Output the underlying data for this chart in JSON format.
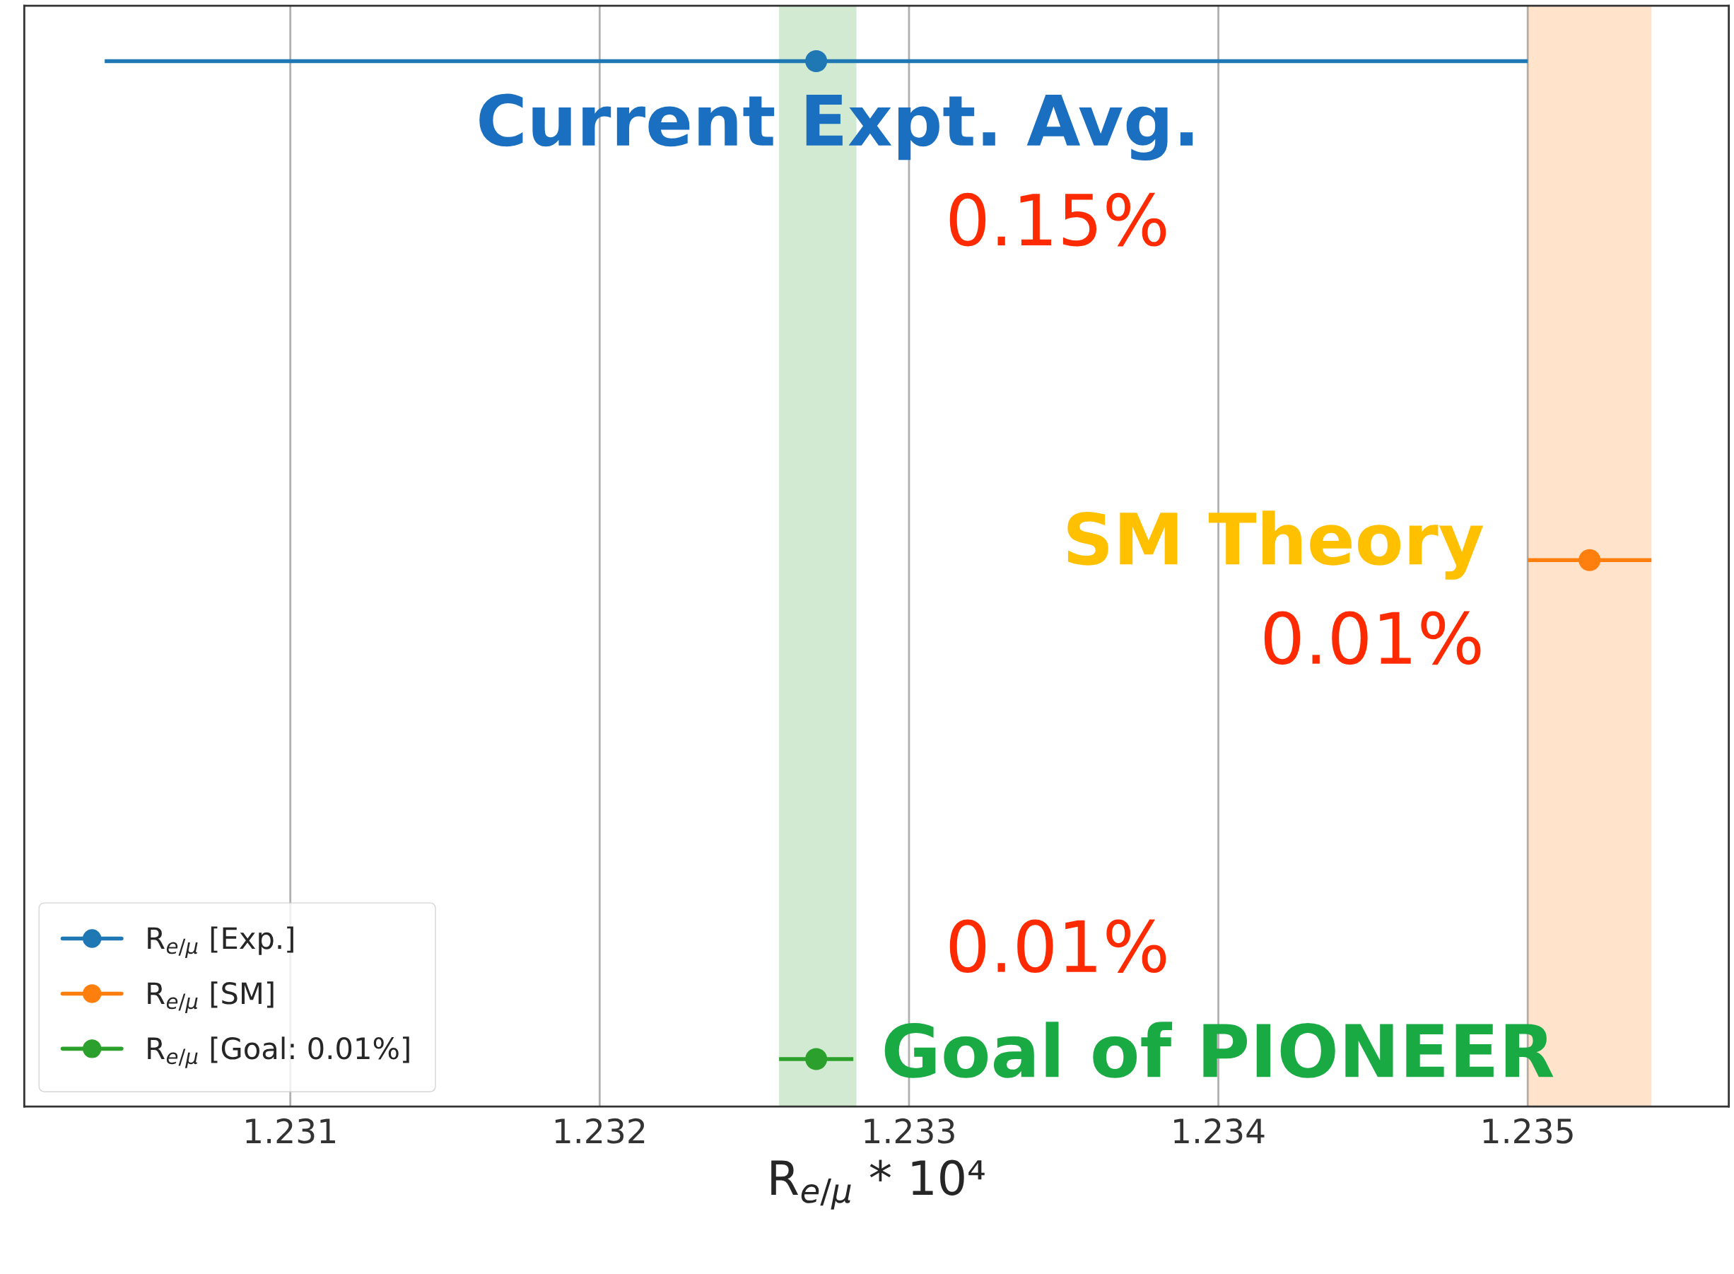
{
  "chart_data": {
    "type": "scatter",
    "orientation": "horizontal",
    "xlabel": "R$_{e/μ}$ * 10⁴",
    "categories": [
      null,
      null,
      null
    ],
    "series": [
      {
        "name": "R$_{e/μ}$ [Exp.]",
        "color": "#1f77b4",
        "values": [
          1.2327,
          null,
          null
        ],
        "errors": [
          0.0023,
          null,
          null
        ]
      },
      {
        "name": "R$_{e/μ}$ [SM]",
        "color": "#ff7f0e",
        "values": [
          null,
          1.2352,
          null
        ],
        "errors": [
          null,
          0.0002,
          null
        ]
      },
      {
        "name": "R$_{e/μ}$ [Goal: 0.01%]",
        "color": "#2ca02c",
        "values": [
          null,
          null,
          1.2327
        ],
        "errors": [
          null,
          null,
          0.00012
        ]
      }
    ],
    "bands": [
      {
        "axis": "x",
        "from": 1.23258,
        "to": 1.23283,
        "color": "#2ca02c"
      },
      {
        "axis": "x",
        "from": 1.235,
        "to": 1.2354,
        "color": "#ff7f0e"
      }
    ],
    "annotations": [
      "Current Expt. Avg.",
      "0.15%",
      "SM Theory",
      "0.01%",
      "0.01%",
      "Goal of PIONEER"
    ],
    "xlim": [
      1.23014,
      1.23565
    ],
    "xticks": [
      1.231,
      1.232,
      1.233,
      1.234,
      1.235
    ],
    "grid": "x",
    "legend": "bottom left",
    "marker": "circle",
    "tick_labels": "x"
  }
}
